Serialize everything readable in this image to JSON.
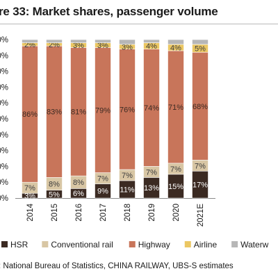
{
  "header": {
    "title": "re 33: Market shares, passenger volume"
  },
  "footer": {
    "source": ": National Bureau of Statistics, CHINA RAILWAY, UBS-S estimates"
  },
  "chart_data": {
    "type": "bar",
    "stacked": true,
    "categories": [
      "2014",
      "2015",
      "2016",
      "2017",
      "2018",
      "2019",
      "2020",
      "2021E"
    ],
    "y_tick_labels": [
      "0%",
      "0%",
      "0%",
      "0%",
      "0%",
      "0%",
      "0%",
      "0%",
      "0%",
      "0%",
      "0%"
    ],
    "ylim": [
      0,
      100
    ],
    "series": [
      {
        "name": "HSR",
        "color": "#3b2a22",
        "values": [
          3,
          5,
          6,
          9,
          11,
          13,
          15,
          17
        ],
        "labels": [
          "3%",
          "5%",
          "6%",
          "9%",
          "11%",
          "13%",
          "15%",
          "17%"
        ],
        "label_color": "#ffffff"
      },
      {
        "name": "Conventional rail",
        "color": "#d8c6a4",
        "values": [
          7,
          8,
          8,
          7,
          7,
          7,
          7,
          7
        ],
        "labels": [
          "7%",
          "8%",
          "8%",
          "7%",
          "7%",
          "7%",
          "7%",
          "7%"
        ],
        "label_color": "#3b3b3b"
      },
      {
        "name": "Highway",
        "color": "#c8755a",
        "values": [
          86,
          83,
          81,
          79,
          76,
          74,
          71,
          68
        ],
        "labels": [
          "86%",
          "83%",
          "81%",
          "79%",
          "76%",
          "74%",
          "71%",
          "68%"
        ],
        "label_color": "#3b2a22"
      },
      {
        "name": "Airline",
        "color": "#ebc763",
        "values": [
          2,
          2,
          3,
          3,
          3,
          4,
          4,
          5
        ],
        "labels": [
          "2%",
          "2%",
          "3%",
          "3%",
          "3%",
          "4%",
          "4%",
          "5%"
        ],
        "label_color": "#3b3b3b"
      },
      {
        "name": "Waterw",
        "color": "#b7b7b7",
        "values": [
          2,
          2,
          2,
          2,
          3,
          2,
          3,
          3
        ],
        "labels": [
          "",
          "",
          "",
          "",
          "",
          "",
          "",
          ""
        ],
        "label_color": "#3b3b3b"
      }
    ],
    "legend": {
      "position": "bottom"
    },
    "grid": false
  }
}
